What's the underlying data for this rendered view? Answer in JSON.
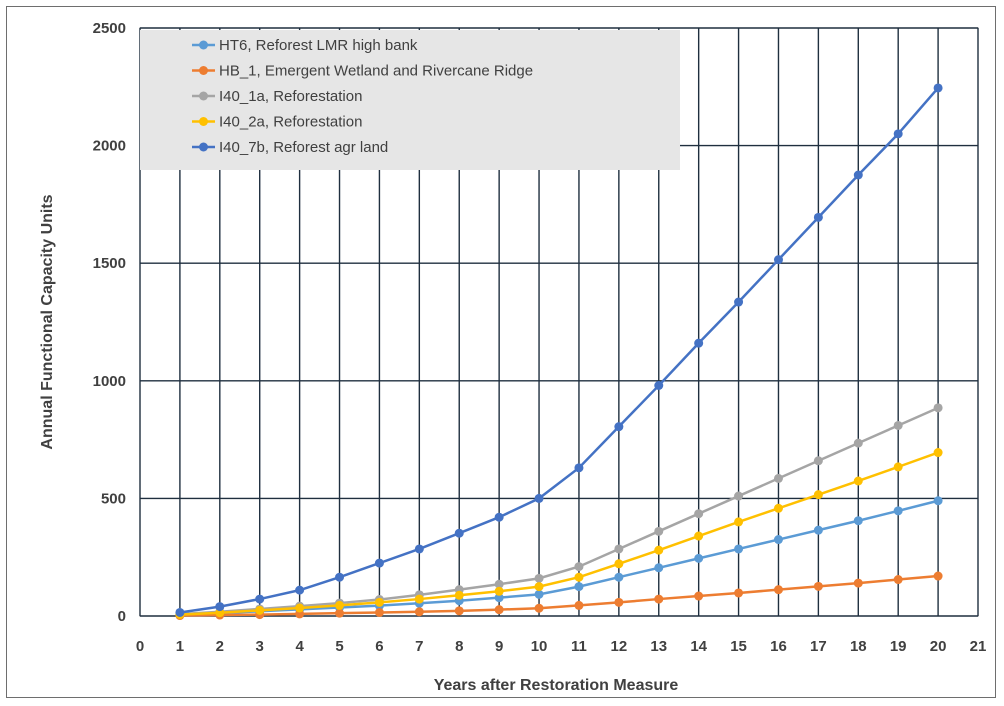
{
  "chart_data": {
    "type": "line",
    "title": "",
    "xlabel": "Years after Restoration Measure",
    "ylabel": "Annual Functional Capacity Units",
    "xlim": [
      0,
      21
    ],
    "ylim": [
      0,
      2500
    ],
    "xticks": [
      "0",
      "1",
      "2",
      "3",
      "4",
      "5",
      "6",
      "7",
      "8",
      "9",
      "10",
      "11",
      "12",
      "13",
      "14",
      "15",
      "16",
      "17",
      "18",
      "19",
      "20",
      "21"
    ],
    "yticks": [
      "0",
      "500",
      "1000",
      "1500",
      "2000",
      "2500"
    ],
    "grid": true,
    "legend_position": "top-left",
    "x": [
      1,
      2,
      3,
      4,
      5,
      6,
      7,
      8,
      9,
      10,
      11,
      12,
      13,
      14,
      15,
      16,
      17,
      18,
      19,
      20
    ],
    "series": [
      {
        "name": "HT6, Reforest LMR high bank",
        "color": "#5B9BD5",
        "values": [
          5,
          12,
          20,
          28,
          36,
          44,
          54,
          65,
          78,
          92,
          125,
          165,
          205,
          245,
          285,
          325,
          365,
          405,
          447,
          490
        ]
      },
      {
        "name": "HB_1, Emergent Wetland and Rivercane Ridge",
        "color": "#ED7D31",
        "values": [
          2,
          4,
          6,
          9,
          12,
          15,
          18,
          22,
          27,
          33,
          45,
          58,
          72,
          85,
          98,
          112,
          126,
          140,
          155,
          170
        ]
      },
      {
        "name": "I40_1a, Reforestation",
        "color": "#A5A5A5",
        "values": [
          8,
          18,
          30,
          42,
          55,
          70,
          90,
          112,
          135,
          160,
          210,
          285,
          360,
          435,
          510,
          585,
          660,
          735,
          810,
          885
        ]
      },
      {
        "name": "I40_2a, Reforestation",
        "color": "#FFC000",
        "values": [
          6,
          14,
          24,
          34,
          45,
          58,
          72,
          88,
          105,
          125,
          165,
          222,
          280,
          340,
          400,
          458,
          516,
          574,
          634,
          695
        ]
      },
      {
        "name": "I40_7b, Reforest agr land",
        "color": "#4472C4",
        "values": [
          15,
          40,
          72,
          110,
          165,
          225,
          285,
          352,
          420,
          500,
          630,
          805,
          980,
          1160,
          1335,
          1515,
          1695,
          1875,
          2050,
          2245
        ]
      }
    ]
  }
}
